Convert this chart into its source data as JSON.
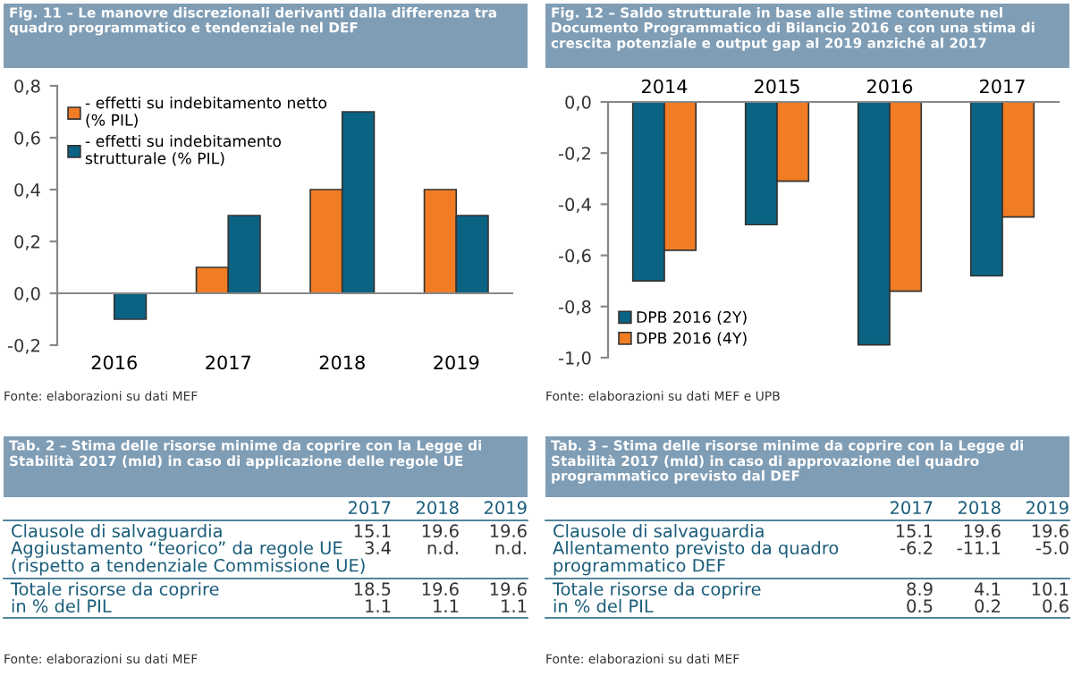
{
  "chart_data": [
    {
      "type": "bar",
      "title": "Fig. 11 – Le manovre discrezionali derivanti dalla differenza tra\nquadro programmatico e tendenziale nel DEF",
      "categories": [
        "2016",
        "2017",
        "2018",
        "2019"
      ],
      "series": [
        {
          "name": "- effetti su indebitamento netto\n(% PIL)",
          "color": "#f07c24",
          "values": [
            null,
            0.1,
            0.4,
            0.4
          ]
        },
        {
          "name": "- effetti su indebitamento\nstrutturale (% PIL)",
          "color": "#0b6384",
          "values": [
            -0.1,
            0.3,
            0.7,
            0.3
          ]
        }
      ],
      "ylim": [
        -0.2,
        0.8
      ],
      "yticks": [
        {
          "value": -0.2,
          "label": "-0,2"
        },
        {
          "value": 0.0,
          "label": "0,0"
        },
        {
          "value": 0.2,
          "label": "0,2"
        },
        {
          "value": 0.4,
          "label": "0,4"
        },
        {
          "value": 0.6,
          "label": "0,6"
        },
        {
          "value": 0.8,
          "label": "0,8"
        }
      ],
      "grid": false,
      "legend": "top left",
      "ref_lines": [
        {
          "axis": "y",
          "value": 0.0,
          "color": "#888888"
        }
      ],
      "annotations": [
        "Fonte: elaborazioni su dati MEF"
      ]
    },
    {
      "type": "bar",
      "title": "Fig. 12 – Saldo strutturale in base alle stime contenute nel\nDocumento Programmatico di Bilancio 2016 e con una stima di\ncrescita potenziale e output gap al 2019 anziché al 2017",
      "categories": [
        "2014",
        "2015",
        "2016",
        "2017"
      ],
      "series": [
        {
          "name": "DPB 2016 (2Y)",
          "color": "#0b6384",
          "values": [
            -0.7,
            -0.48,
            -0.95,
            -0.68
          ]
        },
        {
          "name": "DPB 2016 (4Y)",
          "color": "#f07c24",
          "values": [
            -0.58,
            -0.31,
            -0.74,
            -0.45
          ]
        }
      ],
      "ylim": [
        -1.0,
        0.0
      ],
      "yticks": [
        {
          "value": -1.0,
          "label": "-1,0"
        },
        {
          "value": -0.8,
          "label": "-0,8"
        },
        {
          "value": -0.6,
          "label": "-0,6"
        },
        {
          "value": -0.4,
          "label": "-0,4"
        },
        {
          "value": -0.2,
          "label": "-0,2"
        },
        {
          "value": 0.0,
          "label": "0,0"
        }
      ],
      "grid": false,
      "legend": "bottom left",
      "annotations": [
        "Fonte: elaborazioni su dati MEF e UPB"
      ]
    },
    {
      "type": "other",
      "title": "Tab. 2 – Stima delle risorse minime da coprire con la Legge di\nStabilità 2017 (mld) in caso di applicazione delle regole UE",
      "categories": [
        "2017",
        "2018",
        "2019"
      ],
      "y_categories": [
        "Clausole di salvaguardia",
        "Aggiustamento “teorico” da regole UE\n(rispetto a tendenziale Commissione UE)",
        "Totale risorse da coprire",
        "in % del PIL"
      ],
      "cell_labels": [
        [
          "15.1",
          "19.6",
          "19.6"
        ],
        [
          "3.4",
          "n.d.",
          "n.d."
        ],
        [
          "18.5",
          "19.6",
          "19.6"
        ],
        [
          "1.1",
          "1.1",
          "1.1"
        ]
      ],
      "annotations": [
        "Fonte: elaborazioni su dati MEF"
      ]
    },
    {
      "type": "other",
      "title": "Tab. 3 – Stima delle risorse minime da coprire con la Legge di\nStabilità 2017 (mld) in caso di approvazione del quadro\nprogrammatico previsto dal DEF",
      "categories": [
        "2017",
        "2018",
        "2019"
      ],
      "y_categories": [
        "Clausole di salvaguardia",
        "Allentamento previsto da quadro\nprogrammatico DEF",
        "Totale risorse da coprire",
        "in % del PIL"
      ],
      "cell_labels": [
        [
          "15.1",
          "19.6",
          "19.6"
        ],
        [
          "-6.2",
          "-11.1",
          "-5.0"
        ],
        [
          "8.9",
          "4.1",
          "10.1"
        ],
        [
          "0.5",
          "0.2",
          "0.6"
        ]
      ],
      "annotations": [
        "Fonte: elaborazioni su dati MEF"
      ]
    }
  ]
}
